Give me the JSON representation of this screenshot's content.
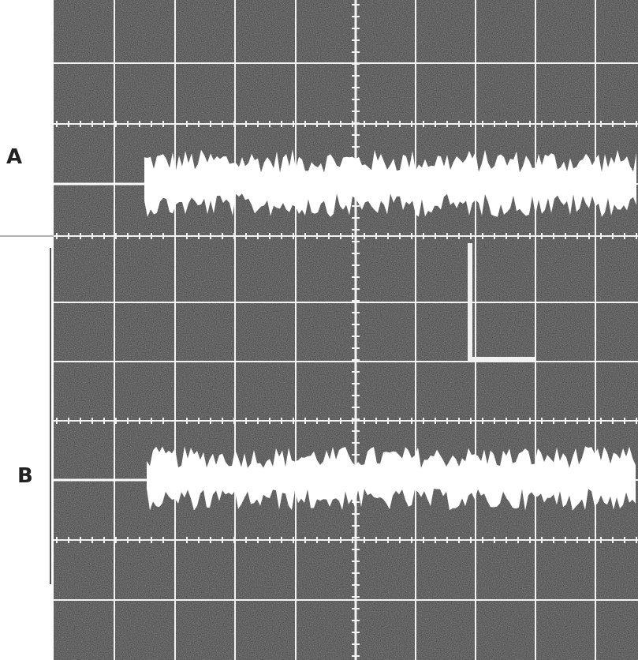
{
  "traces": [
    {
      "id": "A",
      "label": "A"
    },
    {
      "id": "B",
      "label": "B"
    }
  ],
  "colors": {
    "screen_dark": "#3a3a3a",
    "screen_light": "#8a8a8a",
    "grid": "#f2f2f2",
    "trace": "#ffffff",
    "label": "#222222"
  }
}
